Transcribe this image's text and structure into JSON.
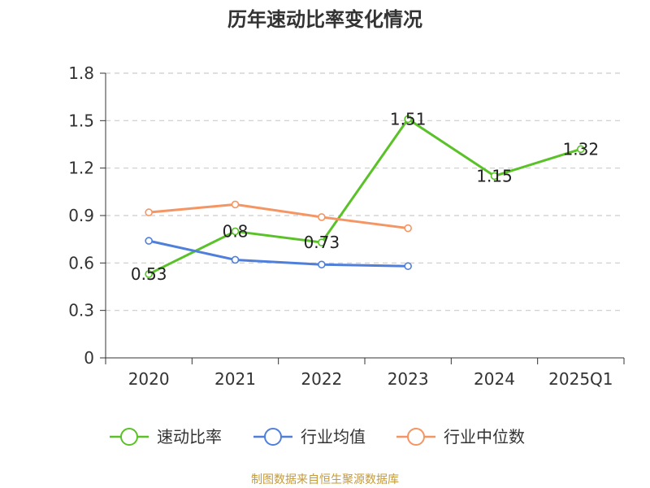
{
  "chart_data": {
    "type": "line",
    "title": "历年速动比率变化情况",
    "categories": [
      "2020",
      "2021",
      "2022",
      "2023",
      "2024",
      "2025Q1"
    ],
    "y_ticks": [
      "0",
      "0.3",
      "0.6",
      "0.9",
      "1.2",
      "1.5",
      "1.8"
    ],
    "ylim": [
      0,
      1.8
    ],
    "grid": true,
    "legend_position": "bottom",
    "series": [
      {
        "name": "速动比率",
        "color": "#5ac228",
        "values": [
          0.53,
          0.8,
          0.73,
          1.51,
          1.15,
          1.32
        ],
        "data_labels": [
          "0.53",
          "0.8",
          "0.73",
          "1.51",
          "1.15",
          "1.32"
        ]
      },
      {
        "name": "行业均值",
        "color": "#4f7fdb",
        "values": [
          0.74,
          0.62,
          0.59,
          0.58,
          null,
          null
        ]
      },
      {
        "name": "行业中位数",
        "color": "#f59563",
        "values": [
          0.92,
          0.97,
          0.89,
          0.82,
          null,
          null
        ]
      }
    ]
  },
  "source": {
    "text": "制图数据来自恒生聚源数据库",
    "color": "#c59a3a"
  }
}
